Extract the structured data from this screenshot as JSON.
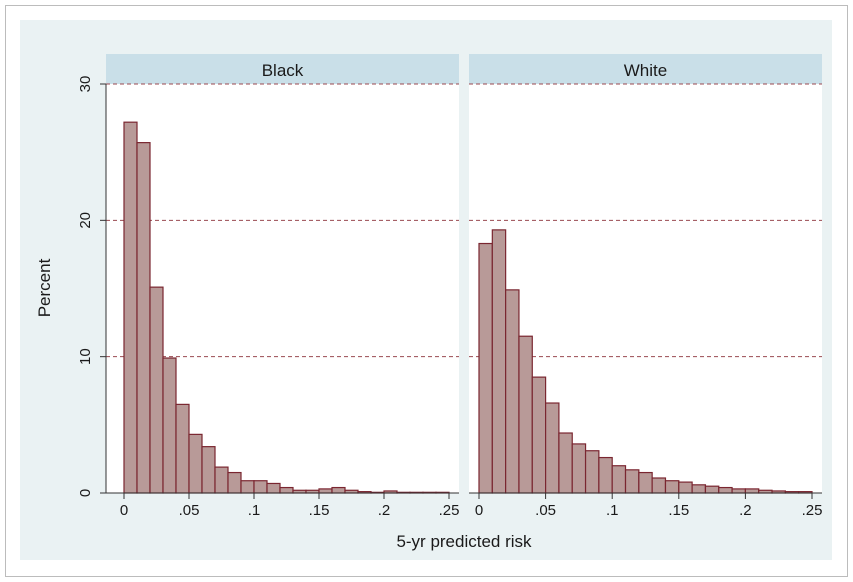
{
  "chart_data": {
    "type": "bar",
    "subtype": "histogram-small-multiples",
    "ylabel": "Percent",
    "xlabel": "5-yr predicted risk",
    "ylim": [
      0,
      30
    ],
    "yticks": [
      0,
      10,
      20,
      30
    ],
    "ytick_labels": [
      "0",
      "10",
      "20",
      "30"
    ],
    "xlim": [
      0,
      0.25
    ],
    "xticks": [
      0,
      0.05,
      0.1,
      0.15,
      0.2,
      0.25
    ],
    "xtick_labels": [
      "0",
      ".05",
      ".1",
      ".15",
      ".2",
      ".25"
    ],
    "grid": "horizontal dashed at 10, 20, 30",
    "bin_width": 0.01,
    "bin_start": 0,
    "colors": {
      "bar_fill": "#b89a98",
      "bar_stroke": "#7a2630",
      "grid": "#9a4a50",
      "strip": "#c9dfe8",
      "outer_background": "#eaf2f3",
      "plot_background": "#ffffff"
    },
    "panels": [
      {
        "name": "Black",
        "values": [
          27.2,
          25.7,
          15.1,
          9.9,
          6.5,
          4.3,
          3.4,
          1.9,
          1.5,
          0.9,
          0.9,
          0.7,
          0.4,
          0.2,
          0.2,
          0.3,
          0.4,
          0.2,
          0.1,
          0.05,
          0.15,
          0.05,
          0.05,
          0.05,
          0.05
        ]
      },
      {
        "name": "White",
        "values": [
          18.3,
          19.3,
          14.9,
          11.5,
          8.5,
          6.6,
          4.4,
          3.6,
          3.1,
          2.6,
          2.0,
          1.7,
          1.5,
          1.1,
          0.9,
          0.8,
          0.6,
          0.5,
          0.4,
          0.3,
          0.3,
          0.2,
          0.15,
          0.1,
          0.1
        ]
      }
    ]
  }
}
